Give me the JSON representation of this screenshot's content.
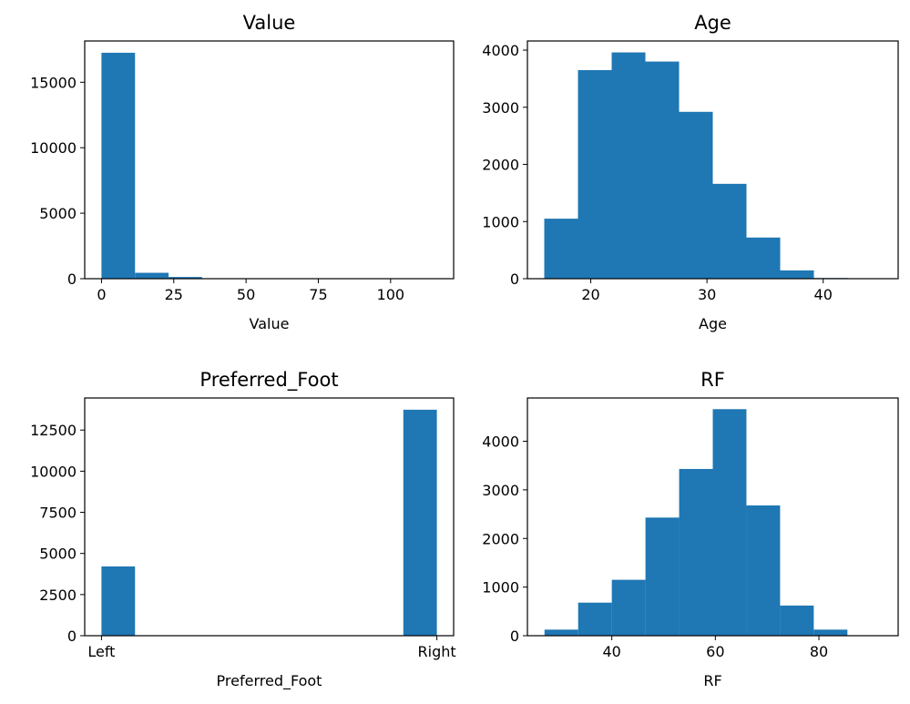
{
  "chart_data": [
    {
      "type": "bar",
      "title": "Value",
      "xlabel": "Value",
      "ylabel": "",
      "xlim": [
        -5.8,
        121.8
      ],
      "ylim": [
        0,
        18150
      ],
      "xticks": [
        0,
        25,
        50,
        75,
        100
      ],
      "xtick_labels": [
        "0",
        "25",
        "50",
        "75",
        "100"
      ],
      "yticks": [
        0,
        5000,
        10000,
        15000
      ],
      "ytick_labels": [
        "0",
        "5000",
        "10000",
        "15000"
      ],
      "grid": false,
      "bins": [
        {
          "x0": 0,
          "x1": 11.6,
          "value": 17250
        },
        {
          "x0": 11.6,
          "x1": 23.2,
          "value": 450
        },
        {
          "x0": 23.2,
          "x1": 34.8,
          "value": 130
        },
        {
          "x0": 34.8,
          "x1": 46.4,
          "value": 30
        },
        {
          "x0": 46.4,
          "x1": 58,
          "value": 15
        },
        {
          "x0": 58,
          "x1": 69.6,
          "value": 8
        },
        {
          "x0": 69.6,
          "x1": 81.2,
          "value": 5
        },
        {
          "x0": 81.2,
          "x1": 92.8,
          "value": 3
        },
        {
          "x0": 92.8,
          "x1": 104.4,
          "value": 2
        },
        {
          "x0": 104.4,
          "x1": 116,
          "value": 1
        }
      ]
    },
    {
      "type": "bar",
      "title": "Age",
      "xlabel": "Age",
      "ylabel": "",
      "xlim": [
        14.55,
        46.45
      ],
      "ylim": [
        0,
        4160
      ],
      "xticks": [
        20,
        30,
        40
      ],
      "xtick_labels": [
        "20",
        "30",
        "40"
      ],
      "yticks": [
        0,
        1000,
        2000,
        3000,
        4000
      ],
      "ytick_labels": [
        "0",
        "1000",
        "2000",
        "3000",
        "4000"
      ],
      "grid": false,
      "bins": [
        {
          "x0": 16,
          "x1": 18.9,
          "value": 1050
        },
        {
          "x0": 18.9,
          "x1": 21.8,
          "value": 3650
        },
        {
          "x0": 21.8,
          "x1": 24.7,
          "value": 3960
        },
        {
          "x0": 24.7,
          "x1": 27.6,
          "value": 3800
        },
        {
          "x0": 27.6,
          "x1": 30.5,
          "value": 2920
        },
        {
          "x0": 30.5,
          "x1": 33.4,
          "value": 1660
        },
        {
          "x0": 33.4,
          "x1": 36.3,
          "value": 720
        },
        {
          "x0": 36.3,
          "x1": 39.2,
          "value": 145
        },
        {
          "x0": 39.2,
          "x1": 42.1,
          "value": 12
        },
        {
          "x0": 42.1,
          "x1": 45,
          "value": 3
        }
      ]
    },
    {
      "type": "bar",
      "title": "Preferred_Foot",
      "xlabel": "Preferred_Foot",
      "ylabel": "",
      "xlim": [
        -0.05,
        1.05
      ],
      "ylim": [
        0,
        14450
      ],
      "xticks": [
        0,
        1
      ],
      "xtick_labels": [
        "Left",
        "Right"
      ],
      "yticks": [
        0,
        2500,
        5000,
        7500,
        10000,
        12500
      ],
      "ytick_labels": [
        "0",
        "2500",
        "5000",
        "7500",
        "10000",
        "12500"
      ],
      "grid": false,
      "bins": [
        {
          "x0": 0,
          "x1": 0.1,
          "value": 4211
        },
        {
          "x0": 0.9,
          "x1": 1,
          "value": 13737
        }
      ]
    },
    {
      "type": "bar",
      "title": "RF",
      "xlabel": "RF",
      "ylabel": "",
      "xlim": [
        23.7,
        95.3
      ],
      "ylim": [
        0,
        4890
      ],
      "xticks": [
        40,
        60,
        80
      ],
      "xtick_labels": [
        "40",
        "60",
        "80"
      ],
      "yticks": [
        0,
        1000,
        2000,
        3000,
        4000
      ],
      "ytick_labels": [
        "0",
        "1000",
        "2000",
        "3000",
        "4000"
      ],
      "grid": false,
      "bins": [
        {
          "x0": 27,
          "x1": 33.5,
          "value": 125
        },
        {
          "x0": 33.5,
          "x1": 40,
          "value": 680
        },
        {
          "x0": 40,
          "x1": 46.5,
          "value": 1150
        },
        {
          "x0": 46.5,
          "x1": 53,
          "value": 2430
        },
        {
          "x0": 53,
          "x1": 59.5,
          "value": 3430
        },
        {
          "x0": 59.5,
          "x1": 66,
          "value": 4660
        },
        {
          "x0": 66,
          "x1": 72.5,
          "value": 2680
        },
        {
          "x0": 72.5,
          "x1": 79,
          "value": 620
        },
        {
          "x0": 79,
          "x1": 85.5,
          "value": 125
        },
        {
          "x0": 85.5,
          "x1": 92,
          "value": 8
        }
      ]
    }
  ]
}
